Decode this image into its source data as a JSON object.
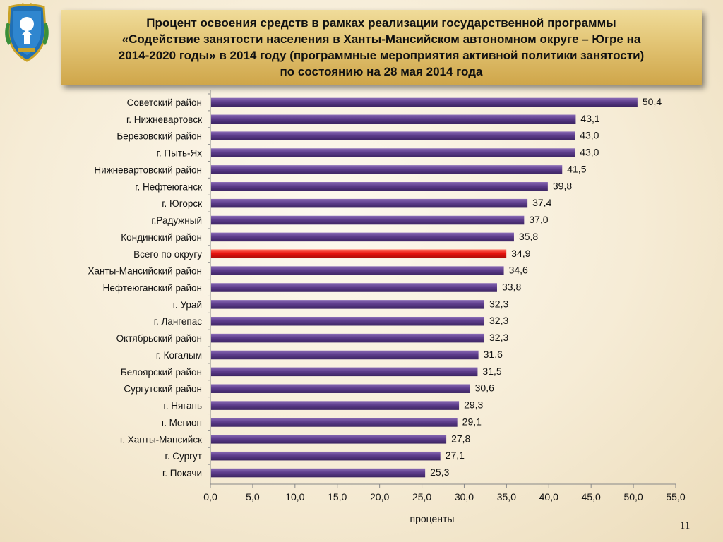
{
  "slide": {
    "title": "Процент освоения средств в рамках реализации государственной  программы\n«Содействие занятости населения  в Ханты-Мансийском автономном округе – Югре на\n2014-2020 годы» в 2014 году (программные мероприятия активной политики занятости)\nпо состоянию на 28 мая 2014 года",
    "page_number": "11"
  },
  "colors": {
    "bar": "#5e3d8c",
    "bar_highlight": "#e8140e",
    "highlight_label": "#c8102e",
    "axis": "#888888",
    "title_bg": "#dcbc68"
  },
  "chart_data": {
    "type": "bar",
    "orientation": "horizontal",
    "categories": [
      "Советский район",
      "г. Нижневартовск",
      "Березовский район",
      "г. Пыть-Ях",
      "Нижневартовский район",
      "г. Нефтеюганск",
      "г. Югорск",
      "г.Радужный",
      "Кондинский район",
      "Всего по округу",
      "Ханты-Мансийский район",
      "Нефтеюганский район",
      "г. Урай",
      "г. Лангепас",
      "Октябрьский район",
      "г. Когалым",
      "Белоярский  район",
      "Сургутский район",
      "г. Нягань",
      "г. Мегион",
      "г. Ханты-Мансийск",
      "г. Сургут",
      "г. Покачи"
    ],
    "values": [
      50.4,
      43.1,
      43.0,
      43.0,
      41.5,
      39.8,
      37.4,
      37.0,
      35.8,
      34.9,
      34.6,
      33.8,
      32.3,
      32.3,
      32.3,
      31.6,
      31.5,
      30.6,
      29.3,
      29.1,
      27.8,
      27.1,
      25.3
    ],
    "value_labels": [
      "50,4",
      "43,1",
      "43,0",
      "43,0",
      "41,5",
      "39,8",
      "37,4",
      "37,0",
      "35,8",
      "34,9",
      "34,6",
      "33,8",
      "32,3",
      "32,3",
      "32,3",
      "31,6",
      "31,5",
      "30,6",
      "29,3",
      "29,1",
      "27,8",
      "27,1",
      "25,3"
    ],
    "highlight_category": "Всего по округу",
    "xlim": [
      0,
      55
    ],
    "xticks": [
      0,
      5,
      10,
      15,
      20,
      25,
      30,
      35,
      40,
      45,
      50,
      55
    ],
    "xtick_labels": [
      "0,0",
      "5,0",
      "10,0",
      "15,0",
      "20,0",
      "25,0",
      "30,0",
      "35,0",
      "40,0",
      "45,0",
      "50,0",
      "55,0"
    ],
    "xlabel": "проценты",
    "grid": false,
    "legend": "none"
  }
}
